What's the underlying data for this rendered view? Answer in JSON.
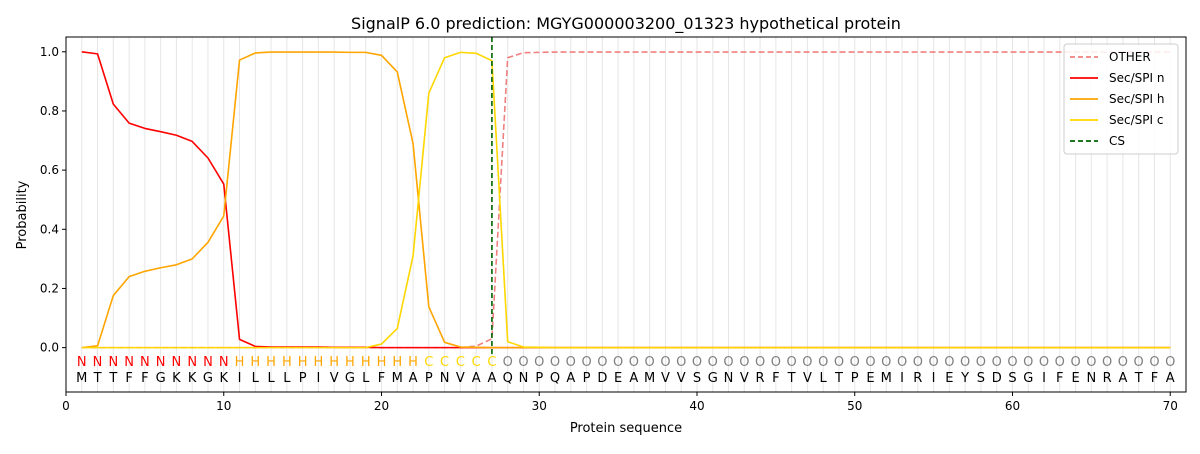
{
  "chart_data": {
    "type": "line",
    "title": "SignalP 6.0 prediction: MGYG000003200_01323 hypothetical protein",
    "xlabel": "Protein sequence",
    "ylabel": "Probability",
    "xlim": [
      0,
      71
    ],
    "ylim": [
      -0.15,
      1.05
    ],
    "xticks": [
      0,
      10,
      20,
      30,
      40,
      50,
      60,
      70
    ],
    "yticks": [
      0.0,
      0.2,
      0.4,
      0.6,
      0.8,
      1.0
    ],
    "ytick_labels": [
      "0.0",
      "0.2",
      "0.4",
      "0.6",
      "0.8",
      "1.0"
    ],
    "legend_position": "top-right",
    "grid": "vertical lines at each residue",
    "sequence": [
      "M",
      "T",
      "T",
      "F",
      "F",
      "G",
      "K",
      "K",
      "G",
      "K",
      "I",
      "L",
      "L",
      "L",
      "P",
      "I",
      "V",
      "G",
      "L",
      "F",
      "M",
      "A",
      "P",
      "N",
      "V",
      "A",
      "A",
      "Q",
      "N",
      "P",
      "Q",
      "A",
      "P",
      "D",
      "E",
      "A",
      "M",
      "V",
      "V",
      "S",
      "G",
      "N",
      "V",
      "R",
      "F",
      "T",
      "V",
      "L",
      "T",
      "P",
      "E",
      "M",
      "I",
      "R",
      "I",
      "E",
      "Y",
      "S",
      "D",
      "S",
      "G",
      "I",
      "F",
      "E",
      "N",
      "R",
      "A",
      "T",
      "F",
      "A"
    ],
    "labels": [
      "N",
      "N",
      "N",
      "N",
      "N",
      "N",
      "N",
      "N",
      "N",
      "N",
      "H",
      "H",
      "H",
      "H",
      "H",
      "H",
      "H",
      "H",
      "H",
      "H",
      "H",
      "H",
      "C",
      "C",
      "C",
      "C",
      "C",
      "O",
      "O",
      "O",
      "O",
      "O",
      "O",
      "O",
      "O",
      "O",
      "O",
      "O",
      "O",
      "O",
      "O",
      "O",
      "O",
      "O",
      "O",
      "O",
      "O",
      "O",
      "O",
      "O",
      "O",
      "O",
      "O",
      "O",
      "O",
      "O",
      "O",
      "O",
      "O",
      "O",
      "O",
      "O",
      "O",
      "O",
      "O",
      "O",
      "O",
      "O",
      "O",
      "O"
    ],
    "label_colors": {
      "N": "#ff0000",
      "H": "#ffa500",
      "C": "#ffd700",
      "O": "#808080"
    },
    "series": [
      {
        "name": "OTHER",
        "color": "#f08080",
        "dash": true,
        "values": [
          0,
          0,
          0,
          0,
          0,
          0,
          0,
          0,
          0,
          0,
          0,
          0,
          0,
          0,
          0,
          0,
          0,
          0,
          0,
          0,
          0,
          0,
          0,
          0,
          0,
          0.005,
          0.03,
          0.98,
          0.997,
          0.998,
          0.999,
          0.999,
          0.999,
          0.999,
          0.999,
          0.999,
          0.999,
          0.999,
          0.999,
          0.999,
          0.999,
          0.999,
          0.999,
          0.999,
          0.999,
          0.999,
          0.999,
          0.999,
          0.999,
          0.999,
          0.999,
          0.999,
          0.999,
          0.999,
          0.999,
          0.999,
          0.999,
          0.999,
          0.999,
          0.999,
          0.999,
          0.999,
          0.999,
          0.999,
          0.999,
          0.999,
          0.999,
          0.999,
          0.999,
          0.999
        ]
      },
      {
        "name": "Sec/SPI n",
        "color": "#ff0000",
        "dash": false,
        "values": [
          1.0,
          0.993,
          0.823,
          0.759,
          0.741,
          0.73,
          0.718,
          0.697,
          0.641,
          0.553,
          0.028,
          0.004,
          0.002,
          0.002,
          0.002,
          0.002,
          0.001,
          0.001,
          0.001,
          0,
          0,
          0,
          0,
          0,
          0,
          0,
          0,
          0,
          0,
          0,
          0,
          0,
          0,
          0,
          0,
          0,
          0,
          0,
          0,
          0,
          0,
          0,
          0,
          0,
          0,
          0,
          0,
          0,
          0,
          0,
          0,
          0,
          0,
          0,
          0,
          0,
          0,
          0,
          0,
          0,
          0,
          0,
          0,
          0,
          0,
          0,
          0,
          0,
          0,
          0
        ]
      },
      {
        "name": "Sec/SPI h",
        "color": "#ffa500",
        "dash": false,
        "values": [
          0,
          0.006,
          0.176,
          0.24,
          0.258,
          0.27,
          0.28,
          0.3,
          0.356,
          0.445,
          0.972,
          0.996,
          0.999,
          0.999,
          0.999,
          0.999,
          0.999,
          0.998,
          0.998,
          0.988,
          0.932,
          0.69,
          0.138,
          0.018,
          0.002,
          0.001,
          0,
          0,
          0,
          0,
          0,
          0,
          0,
          0,
          0,
          0,
          0,
          0,
          0,
          0,
          0,
          0,
          0,
          0,
          0,
          0,
          0,
          0,
          0,
          0,
          0,
          0,
          0,
          0,
          0,
          0,
          0,
          0,
          0,
          0,
          0,
          0,
          0,
          0,
          0,
          0,
          0,
          0,
          0,
          0
        ]
      },
      {
        "name": "Sec/SPI c",
        "color": "#ffd700",
        "dash": false,
        "values": [
          0,
          0,
          0,
          0,
          0,
          0,
          0,
          0,
          0,
          0,
          0,
          0,
          0,
          0,
          0,
          0,
          0,
          0,
          0,
          0.012,
          0.065,
          0.31,
          0.86,
          0.98,
          0.998,
          0.995,
          0.97,
          0.02,
          0.002,
          0.001,
          0,
          0,
          0,
          0,
          0,
          0,
          0,
          0,
          0,
          0,
          0,
          0,
          0,
          0,
          0,
          0,
          0,
          0,
          0,
          0,
          0,
          0,
          0,
          0,
          0,
          0,
          0,
          0,
          0,
          0,
          0,
          0,
          0,
          0,
          0,
          0,
          0,
          0,
          0,
          0
        ]
      }
    ],
    "cs": {
      "name": "CS",
      "x": 27,
      "color": "#006400"
    }
  }
}
